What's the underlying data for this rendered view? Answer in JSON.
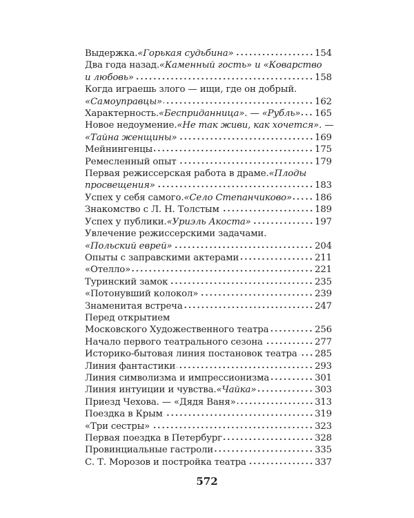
{
  "page_number": "572",
  "entries": [
    {
      "lead": [
        {
          "t": "Выдержка. "
        },
        {
          "t": "«Горькая судьбина»",
          "i": true
        }
      ],
      "page": "154"
    },
    {
      "head": [
        {
          "t": "Два года назад. "
        },
        {
          "t": "«Каменный гость» и «Коварство",
          "i": true
        }
      ],
      "lead": [
        {
          "t": "и любовь»",
          "i": true
        }
      ],
      "page": "158"
    },
    {
      "head": [
        {
          "t": "Когда играешь злого — ищи, где он добрый."
        }
      ],
      "lead": [
        {
          "t": "«Самоуправцы»",
          "i": true
        }
      ],
      "page": "162"
    },
    {
      "lead": [
        {
          "t": "Характерность. "
        },
        {
          "t": "«Бесприданница». — «Рубль»",
          "i": true
        }
      ],
      "page": "165"
    },
    {
      "head": [
        {
          "t": "Новое недоумение. "
        },
        {
          "t": "«Не так живи, как хочется». —",
          "i": true
        }
      ],
      "lead": [
        {
          "t": "«Тайна женщины»",
          "i": true
        }
      ],
      "page": "169"
    },
    {
      "lead": [
        {
          "t": "Мейнингенцы"
        }
      ],
      "page": "175"
    },
    {
      "lead": [
        {
          "t": "Ремесленный опыт"
        }
      ],
      "page": "179"
    },
    {
      "head": [
        {
          "t": "Первая режиссерская работа в драме. "
        },
        {
          "t": "«Плоды",
          "i": true
        }
      ],
      "lead": [
        {
          "t": "просвещения»",
          "i": true
        }
      ],
      "page": "183"
    },
    {
      "lead": [
        {
          "t": "Успех у себя самого. "
        },
        {
          "t": "«Село Степанчиково»",
          "i": true
        }
      ],
      "page": "186"
    },
    {
      "lead": [
        {
          "t": "Знакомство с Л. Н. Толстым"
        }
      ],
      "page": "189"
    },
    {
      "lead": [
        {
          "t": "Успех у публики. "
        },
        {
          "t": "«Уриэль Акоста»",
          "i": true
        }
      ],
      "page": "197"
    },
    {
      "head": [
        {
          "t": "Увлечение режиссерскими задачами."
        }
      ],
      "lead": [
        {
          "t": "«Польский еврей»",
          "i": true
        }
      ],
      "page": "204"
    },
    {
      "lead": [
        {
          "t": "Опыты с заправскими актерами"
        }
      ],
      "page": "211"
    },
    {
      "lead": [
        {
          "t": "«Отелло»"
        }
      ],
      "page": "221"
    },
    {
      "lead": [
        {
          "t": "Туринский замок"
        }
      ],
      "page": "235"
    },
    {
      "lead": [
        {
          "t": "«Потонувший колокол»"
        }
      ],
      "page": "239"
    },
    {
      "lead": [
        {
          "t": "Знаменитая встреча"
        }
      ],
      "page": "247"
    },
    {
      "head": [
        {
          "t": "Перед открытием"
        }
      ],
      "lead": [
        {
          "t": "Московского Художественного театра"
        }
      ],
      "page": "256"
    },
    {
      "lead": [
        {
          "t": "Начало первого театрального сезона"
        }
      ],
      "page": "277"
    },
    {
      "lead": [
        {
          "t": "Историко-бытовая линия постановок театра"
        }
      ],
      "page": "285"
    },
    {
      "lead": [
        {
          "t": "Линия фантастики"
        }
      ],
      "page": "293"
    },
    {
      "lead": [
        {
          "t": "Линия символизма и импрессионизма"
        }
      ],
      "page": "301"
    },
    {
      "lead": [
        {
          "t": "Линия интуиции и чувства. "
        },
        {
          "t": "«Чайка»",
          "i": true
        }
      ],
      "page": "303"
    },
    {
      "lead": [
        {
          "t": "Приезд Чехова. — «Дядя Ваня»"
        }
      ],
      "page": "313"
    },
    {
      "lead": [
        {
          "t": "Поездка в Крым"
        }
      ],
      "page": "319"
    },
    {
      "lead": [
        {
          "t": "«Три сестры»"
        }
      ],
      "page": "323"
    },
    {
      "lead": [
        {
          "t": "Первая поездка в Петербург"
        }
      ],
      "page": "328"
    },
    {
      "lead": [
        {
          "t": "Провинциальные гастроли"
        }
      ],
      "page": "335"
    },
    {
      "lead": [
        {
          "t": "С. Т. Морозов и постройка театра"
        }
      ],
      "page": "337"
    }
  ]
}
